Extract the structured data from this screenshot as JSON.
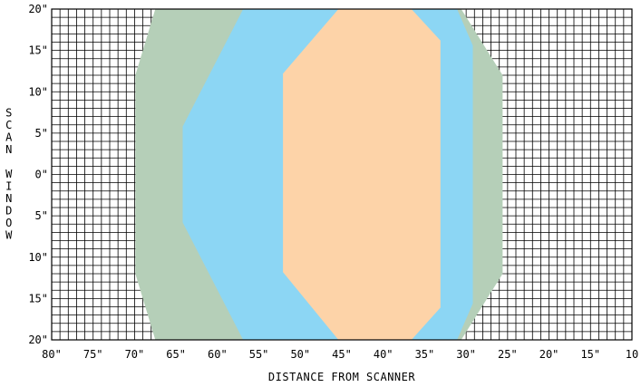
{
  "chart_data": {
    "type": "area",
    "title": "",
    "xlabel": "DISTANCE FROM SCANNER",
    "ylabel": "SCAN WINDOW",
    "x_ticks": [
      "80\"",
      "75\"",
      "70\"",
      "65\"",
      "60\"",
      "55\"",
      "50\"",
      "45\"",
      "40\"",
      "35\"",
      "30\"",
      "25\"",
      "20\"",
      "15\"",
      "10"
    ],
    "y_ticks": [
      "20\"",
      "15\"",
      "10\"",
      "5\"",
      "0\"",
      "5\"",
      "10\"",
      "15\"",
      "20\""
    ],
    "xlim": [
      80,
      10
    ],
    "ylim": [
      -20,
      20
    ],
    "grid": true,
    "grid_step": 1,
    "series": [
      {
        "color": "#b5cfb8",
        "points": [
          [
            67.5,
            20
          ],
          [
            69.9,
            12
          ],
          [
            69.9,
            -12
          ],
          [
            67.5,
            -20
          ],
          [
            30.6,
            -20
          ],
          [
            25.6,
            -12
          ],
          [
            25.6,
            12
          ],
          [
            30.6,
            20
          ]
        ]
      },
      {
        "color": "#8cd6f4",
        "points": [
          [
            56.9,
            20
          ],
          [
            64.2,
            5.8
          ],
          [
            64.2,
            -5.8
          ],
          [
            56.9,
            -20
          ],
          [
            31.1,
            -20
          ],
          [
            29.2,
            -15.6
          ],
          [
            29.2,
            15.6
          ],
          [
            31.1,
            20
          ]
        ]
      },
      {
        "color": "#fdd3a8",
        "points": [
          [
            45.4,
            20
          ],
          [
            52.1,
            12.2
          ],
          [
            52.1,
            -11.8
          ],
          [
            45.4,
            -20
          ],
          [
            36.6,
            -20
          ],
          [
            33.1,
            -16.1
          ],
          [
            33.1,
            16.2
          ],
          [
            36.6,
            20
          ]
        ]
      }
    ]
  }
}
